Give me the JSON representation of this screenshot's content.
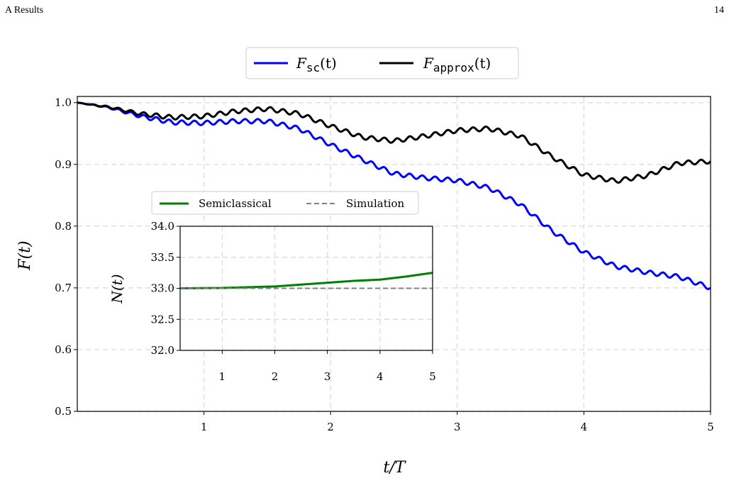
{
  "header": {
    "left": "A   Results",
    "right": "14"
  },
  "chart_data": [
    {
      "type": "line",
      "xlabel": "t/T",
      "ylabel": "F(t)",
      "xlim": [
        0,
        5
      ],
      "ylim": [
        0.5,
        1.01
      ],
      "xticks": [
        1,
        2,
        3,
        4,
        5
      ],
      "yticks": [
        0.5,
        0.6,
        0.7,
        0.8,
        0.9,
        1.0
      ],
      "grid": true,
      "legend": "top-center",
      "series": [
        {
          "name": "F_sc(t)",
          "color": "#0000ff",
          "x": [
            0,
            0.25,
            0.5,
            0.75,
            1.0,
            1.25,
            1.5,
            1.75,
            2.0,
            2.25,
            2.5,
            2.75,
            3.0,
            3.25,
            3.5,
            3.75,
            4.0,
            4.25,
            4.5,
            4.75,
            5.0
          ],
          "y": [
            1.0,
            0.992,
            0.978,
            0.968,
            0.967,
            0.97,
            0.97,
            0.958,
            0.932,
            0.908,
            0.885,
            0.878,
            0.874,
            0.862,
            0.835,
            0.792,
            0.758,
            0.735,
            0.725,
            0.718,
            0.7
          ]
        },
        {
          "name": "F_approx(t)",
          "color": "#000000",
          "x": [
            0,
            0.25,
            0.5,
            0.75,
            1.0,
            1.25,
            1.5,
            1.75,
            2.0,
            2.25,
            2.5,
            2.75,
            3.0,
            3.25,
            3.5,
            3.75,
            4.0,
            4.25,
            4.5,
            4.75,
            5.0
          ],
          "y": [
            1.0,
            0.993,
            0.982,
            0.976,
            0.978,
            0.986,
            0.99,
            0.982,
            0.962,
            0.944,
            0.938,
            0.946,
            0.955,
            0.958,
            0.946,
            0.912,
            0.883,
            0.873,
            0.882,
            0.902,
            0.905
          ]
        }
      ]
    },
    {
      "type": "line",
      "xlabel": "",
      "ylabel": "N(t)",
      "xlim": [
        0.2,
        5
      ],
      "ylim": [
        32.0,
        34.0
      ],
      "xticks": [
        1,
        2,
        3,
        4,
        5
      ],
      "yticks": [
        32.0,
        32.5,
        33.0,
        33.5,
        34.0
      ],
      "grid": true,
      "legend": "top",
      "series": [
        {
          "name": "Semiclassical",
          "color": "#008000",
          "style": "solid",
          "x": [
            0.2,
            1,
            2,
            2.5,
            3,
            3.5,
            4,
            4.5,
            5
          ],
          "y": [
            33.0,
            33.005,
            33.03,
            33.06,
            33.09,
            33.12,
            33.14,
            33.19,
            33.25
          ]
        },
        {
          "name": "Simulation",
          "color": "#808080",
          "style": "dashed",
          "x": [
            0.2,
            5
          ],
          "y": [
            33.0,
            33.0
          ]
        }
      ]
    }
  ]
}
